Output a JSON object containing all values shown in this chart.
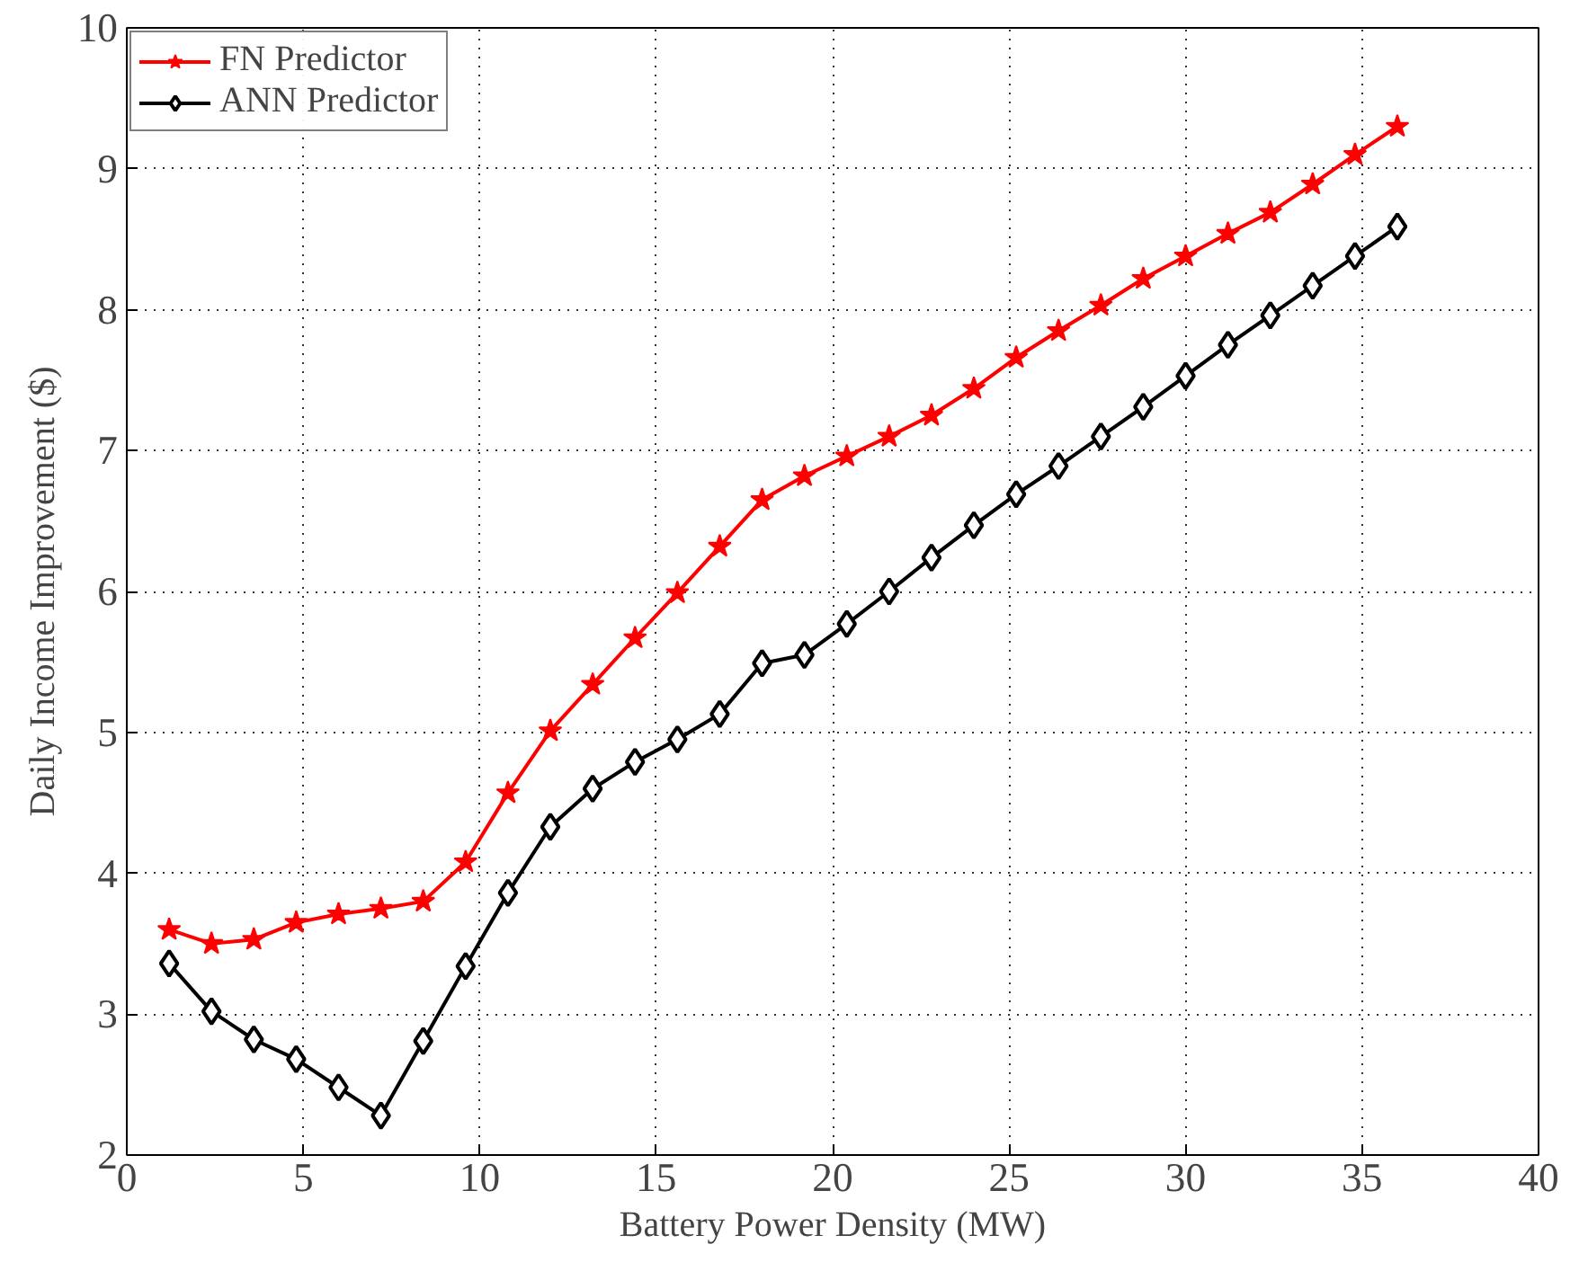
{
  "chart_data": {
    "type": "line",
    "xlabel": "Battery Power Density (MW)",
    "ylabel": "Daily Income Improvement ($)",
    "x": [
      1.2,
      2.4,
      3.6,
      4.8,
      6.0,
      7.2,
      8.4,
      9.6,
      10.8,
      12.0,
      13.2,
      14.4,
      15.6,
      16.8,
      18.0,
      19.2,
      20.4,
      21.6,
      22.8,
      24.0,
      25.2,
      26.4,
      27.6,
      28.8,
      30.0,
      31.2,
      32.4,
      33.6,
      34.8,
      36.0
    ],
    "series": [
      {
        "name": "FN Predictor",
        "color": "#ff0000",
        "marker": "star",
        "values": [
          3.6,
          3.5,
          3.53,
          3.65,
          3.71,
          3.75,
          3.8,
          4.08,
          4.57,
          5.01,
          5.34,
          5.67,
          5.99,
          6.32,
          6.65,
          6.82,
          6.96,
          7.1,
          7.25,
          7.44,
          7.66,
          7.85,
          8.03,
          8.22,
          8.38,
          8.54,
          8.69,
          8.89,
          9.1,
          9.3
        ]
      },
      {
        "name": "ANN Predictor",
        "color": "#000000",
        "marker": "diamond",
        "values": [
          3.36,
          3.02,
          2.82,
          2.68,
          2.48,
          2.28,
          2.81,
          3.34,
          3.86,
          4.33,
          4.6,
          4.79,
          4.95,
          5.13,
          5.49,
          5.55,
          5.77,
          6.0,
          6.24,
          6.47,
          6.69,
          6.89,
          7.1,
          7.31,
          7.53,
          7.75,
          7.96,
          8.17,
          8.38,
          8.59
        ]
      }
    ],
    "xlim": [
      0,
      40
    ],
    "xticks": [
      0,
      5,
      10,
      15,
      20,
      25,
      30,
      35,
      40
    ],
    "ylim": [
      2,
      10
    ],
    "yticks": [
      2,
      3,
      4,
      5,
      6,
      7,
      8,
      9,
      10
    ],
    "grid": true,
    "legend": "top left",
    "line_style": "solid"
  }
}
